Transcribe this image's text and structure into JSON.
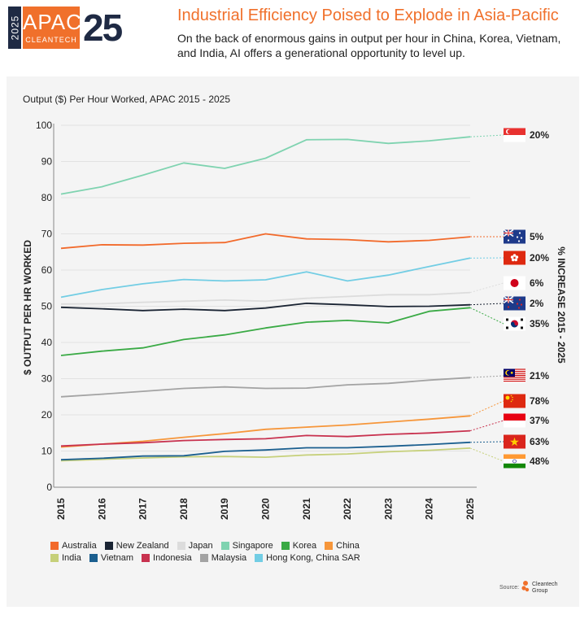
{
  "header": {
    "logo_year": "2025",
    "logo_apac": "APAC",
    "logo_clean": "CLEANTECH",
    "logo_number": "25",
    "title": "Industrial Efficiency Poised to Explode in Asia-Pacific",
    "subtitle": "On the back of enormous gains in output per hour in China, Korea, Vietnam, and India, AI offers a generational opportunity to level up."
  },
  "source": {
    "label": "Source:",
    "brand": "Cleantech Group"
  },
  "chart_data": {
    "type": "line",
    "title": "Output ($) Per Hour Worked, APAC 2015 - 2025",
    "ylabel": "$ OUTPUT PER HR WORKED",
    "y2label": "% INCREASE 2015 - 2025",
    "ylim": [
      0,
      100
    ],
    "yticks": [
      "0",
      "10",
      "20",
      "30",
      "40",
      "50",
      "60",
      "70",
      "80",
      "90",
      "100"
    ],
    "x": [
      "2015",
      "2016",
      "2017",
      "2018",
      "2019",
      "2020",
      "2021",
      "2022",
      "2023",
      "2024",
      "2025"
    ],
    "grid": true,
    "legend_position": "bottom",
    "series": [
      {
        "name": "Australia",
        "color": "#f26a2b",
        "values": [
          66.0,
          67.0,
          66.9,
          67.4,
          67.6,
          70.0,
          68.6,
          68.4,
          67.8,
          68.2,
          69.2
        ],
        "increase": "5%",
        "flag": "australia-flag"
      },
      {
        "name": "New Zealand",
        "color": "#1a2433",
        "values": [
          49.7,
          49.3,
          48.8,
          49.2,
          48.8,
          49.5,
          50.8,
          50.4,
          49.9,
          50.0,
          50.4
        ],
        "increase": "2%",
        "flag": "new-zealand-flag"
      },
      {
        "name": "Japan",
        "color": "#dcdcdc",
        "values": [
          50.6,
          50.7,
          51.1,
          51.4,
          51.7,
          51.4,
          52.2,
          52.7,
          53.2,
          53.2,
          53.8
        ],
        "increase": "6%",
        "flag": "japan-flag"
      },
      {
        "name": "Singapore",
        "color": "#7fd3b0",
        "values": [
          81.0,
          83.0,
          86.2,
          89.6,
          88.1,
          90.9,
          96.0,
          96.1,
          95.0,
          95.7,
          96.8
        ],
        "increase": "20%",
        "flag": "singapore-flag"
      },
      {
        "name": "Korea",
        "color": "#3aaa45",
        "values": [
          36.4,
          37.6,
          38.5,
          40.8,
          42.1,
          44.0,
          45.6,
          46.1,
          45.4,
          48.6,
          49.6
        ],
        "increase": "35%",
        "flag": "korea-flag"
      },
      {
        "name": "China",
        "color": "#f6963a",
        "values": [
          11.1,
          11.9,
          12.7,
          13.8,
          14.8,
          16.0,
          16.6,
          17.2,
          18.0,
          18.8,
          19.7
        ],
        "increase": "78%",
        "flag": "china-flag"
      },
      {
        "name": "India",
        "color": "#c6d07a",
        "values": [
          7.3,
          7.7,
          8.1,
          8.4,
          8.5,
          8.3,
          8.9,
          9.2,
          9.8,
          10.2,
          10.8
        ],
        "increase": "48%",
        "flag": "india-flag"
      },
      {
        "name": "Vietnam",
        "color": "#1b5f8f",
        "values": [
          7.6,
          8.0,
          8.6,
          8.7,
          9.9,
          10.3,
          10.9,
          10.9,
          11.3,
          11.8,
          12.4
        ],
        "increase": "63%",
        "flag": "vietnam-flag"
      },
      {
        "name": "Indonesia",
        "color": "#c8324f",
        "values": [
          11.4,
          11.9,
          12.3,
          12.9,
          13.2,
          13.4,
          14.3,
          14.0,
          14.6,
          15.0,
          15.6
        ],
        "increase": "37%",
        "flag": "indonesia-flag"
      },
      {
        "name": "Malaysia",
        "color": "#a3a3a3",
        "values": [
          25.0,
          25.7,
          26.5,
          27.3,
          27.7,
          27.3,
          27.4,
          28.3,
          28.7,
          29.6,
          30.3
        ],
        "increase": "21%",
        "flag": "malaysia-flag"
      },
      {
        "name": "Hong Kong, China SAR",
        "color": "#72cde4",
        "values": [
          52.5,
          54.6,
          56.2,
          57.4,
          57.0,
          57.3,
          59.5,
          57.0,
          58.6,
          61.0,
          63.3
        ],
        "increase": "20%",
        "flag": "hong-kong-flag"
      }
    ],
    "labels": [
      {
        "series": "Singapore",
        "flag": "singapore-flag",
        "text": "20%"
      },
      {
        "series": "Australia",
        "flag": "australia-flag",
        "text": "5%"
      },
      {
        "series": "Hong Kong, China SAR",
        "flag": "hong-kong-flag",
        "text": "20%"
      },
      {
        "series": "Japan",
        "flag": "japan-flag",
        "text": "6%"
      },
      {
        "series": "New Zealand",
        "flag": "new-zealand-flag",
        "text": "2%"
      },
      {
        "series": "Korea",
        "flag": "korea-flag",
        "text": "35%"
      },
      {
        "series": "Malaysia",
        "flag": "malaysia-flag",
        "text": "21%"
      },
      {
        "series": "China",
        "flag": "china-flag",
        "text": "78%"
      },
      {
        "series": "Indonesia",
        "flag": "indonesia-flag",
        "text": "37%"
      },
      {
        "series": "Vietnam",
        "flag": "vietnam-flag",
        "text": "63%"
      },
      {
        "series": "India",
        "flag": "india-flag",
        "text": "48%"
      }
    ],
    "legend": [
      "Australia",
      "New Zealand",
      "Japan",
      "Singapore",
      "Korea",
      "China",
      "India",
      "Vietnam",
      "Indonesia",
      "Malaysia",
      "Hong Kong, China SAR"
    ]
  }
}
